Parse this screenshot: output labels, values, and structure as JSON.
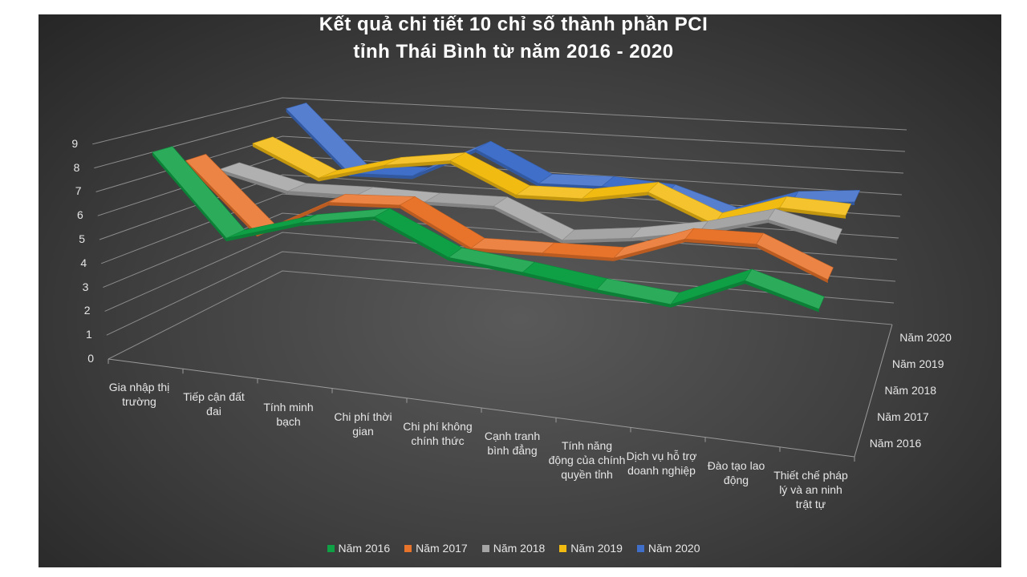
{
  "chart_data": {
    "type": "line",
    "variant": "3d-line",
    "title": "Kết quả chi tiết 10 chỉ số thành phần PCI",
    "subtitle": "tỉnh Thái Bình từ năm 2016 - 2020",
    "categories": [
      "Gia nhập thị trường",
      "Tiếp cận đất đai",
      "Tính minh bạch",
      "Chi phí thời gian",
      "Chi phí không chính thức",
      "Cạnh tranh bình đẳng",
      "Tính năng động của chính quyền tỉnh",
      "Dịch vụ hỗ trợ doanh nghiệp",
      "Đào tạo lao động",
      "Thiết chế pháp lý và an ninh trật tự"
    ],
    "yticks": [
      "0",
      "1",
      "2",
      "3",
      "4",
      "5",
      "6",
      "7",
      "8",
      "9"
    ],
    "ylim": [
      0,
      9
    ],
    "depth_labels": [
      "Năm 2016",
      "Năm 2017",
      "Năm 2018",
      "Năm 2019",
      "Năm 2020"
    ],
    "legend_position": "bottom",
    "grid": true,
    "series": [
      {
        "name": "Năm 2016",
        "color": "#0fa045",
        "values": [
          8.8,
          5.6,
          6.7,
          7.4,
          6.1,
          5.9,
          5.6,
          5.4,
          6.9,
          6.1
        ]
      },
      {
        "name": "Năm 2017",
        "color": "#e8732a",
        "values": [
          8.0,
          5.2,
          7.0,
          7.3,
          5.8,
          6.0,
          6.2,
          7.5,
          7.7,
          6.5
        ]
      },
      {
        "name": "Năm 2018",
        "color": "#a5a5a5",
        "values": [
          7.1,
          6.5,
          6.7,
          6.8,
          7.0,
          5.8,
          6.3,
          7.0,
          8.0,
          7.4
        ]
      },
      {
        "name": "Năm 2019",
        "color": "#f2bb12",
        "values": [
          7.8,
          6.5,
          7.5,
          8.1,
          6.8,
          7.0,
          7.7,
          6.5,
          7.7,
          7.7
        ]
      },
      {
        "name": "Năm 2020",
        "color": "#3f6fc8",
        "values": [
          9.0,
          6.1,
          6.3,
          8.0,
          6.6,
          6.8,
          6.7,
          5.8,
          7.0,
          7.4
        ]
      }
    ]
  }
}
